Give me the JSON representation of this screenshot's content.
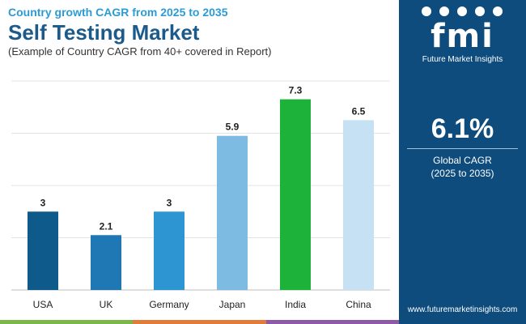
{
  "header": {
    "subtitle": "Country growth CAGR from 2025 to 2035",
    "title": "Self Testing Market",
    "note": "(Example of Country CAGR from 40+ covered in Report)"
  },
  "sidebar": {
    "logo_text": "fmi",
    "logo_sub": "Future Market Insights",
    "cagr_value": "6.1%",
    "cagr_label": "Global CAGR",
    "cagr_period": "(2025 to 2035)",
    "website": "www.futuremarketinsights.com",
    "background": "#0d4c7d"
  },
  "colors": {
    "strip": [
      "#7ab648",
      "#e07b39",
      "#8e5aa8"
    ]
  },
  "chart_data": {
    "type": "bar",
    "categories": [
      "USA",
      "UK",
      "Germany",
      "Japan",
      "India",
      "China"
    ],
    "values": [
      3,
      2.1,
      3,
      5.9,
      7.3,
      6.5
    ],
    "value_labels": [
      "3",
      "2.1",
      "3",
      "5.9",
      "7.3",
      "6.5"
    ],
    "colors": [
      "#0e5a8a",
      "#1f77b4",
      "#2e95d3",
      "#7dbbe3",
      "#1db33a",
      "#c5e1f3"
    ],
    "ylim": [
      0,
      8
    ],
    "grid": true,
    "title": "",
    "xlabel": "",
    "ylabel": ""
  }
}
